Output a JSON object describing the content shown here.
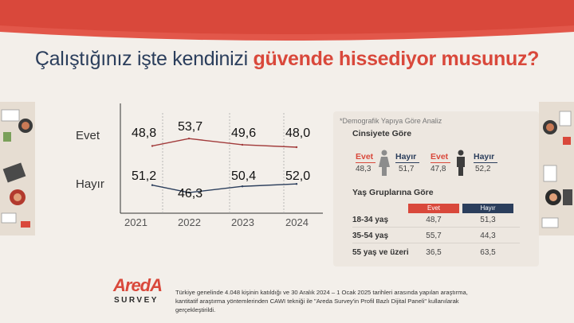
{
  "colors": {
    "accent_red": "#d9483b",
    "navy": "#2b3e5c",
    "background": "#f3efea",
    "panel_bg": "#ede7e0"
  },
  "title": {
    "part_a": "Çalıştığınız işte kendinizi ",
    "part_b": "güvende hissediyor musunuz?"
  },
  "chart_data": {
    "type": "line",
    "categories": [
      "2021",
      "2022",
      "2023",
      "2024"
    ],
    "series": [
      {
        "name": "Evet",
        "values": [
          48.8,
          53.7,
          49.6,
          48.0
        ],
        "labels": [
          "48,8",
          "53,7",
          "49,6",
          "48,0"
        ],
        "color": "#a23b3b"
      },
      {
        "name": "Hayır",
        "values": [
          51.2,
          46.3,
          50.4,
          52.0
        ],
        "labels": [
          "51,2",
          "46,3",
          "50,4",
          "52,0"
        ],
        "color": "#2b3e5c"
      }
    ],
    "grid": "vertical dashed",
    "legend": "left"
  },
  "demographic": {
    "note": "*Demografik Yapıya Göre Analiz",
    "gender_title": "Cinsiyete Göre",
    "female": {
      "evet_label": "Evet",
      "evet_value": "48,3",
      "hayir_label": "Hayır",
      "hayir_value": "51,7",
      "icon": "woman-icon"
    },
    "male": {
      "evet_label": "Evet",
      "evet_value": "47,8",
      "hayir_label": "Hayır",
      "hayir_value": "52,2",
      "icon": "man-icon"
    },
    "age_title": "Yaş Gruplarına Göre",
    "age_headers": [
      "Evet",
      "Hayır"
    ],
    "age_rows": [
      {
        "label": "18-34 yaş",
        "evet": "48,7",
        "hayir": "51,3"
      },
      {
        "label": "35-54 yaş",
        "evet": "55,7",
        "hayir": "44,3"
      },
      {
        "label": "55 yaş ve üzeri",
        "evet": "36,5",
        "hayir": "63,5"
      }
    ]
  },
  "footer": {
    "logo_main": "AredA",
    "logo_sub": "SURVEY",
    "text": "Türkiye genelinde 4.048 kişinin katıldığı ve 30 Aralık 2024 – 1 Ocak 2025 tarihleri arasında yapılan araştırma, kantitatif araştırma yöntemlerinden CAWI tekniği ile \"Areda  Survey'in Profil Bazlı Dijital Paneli\" kullanılarak gerçekleştirildi."
  }
}
